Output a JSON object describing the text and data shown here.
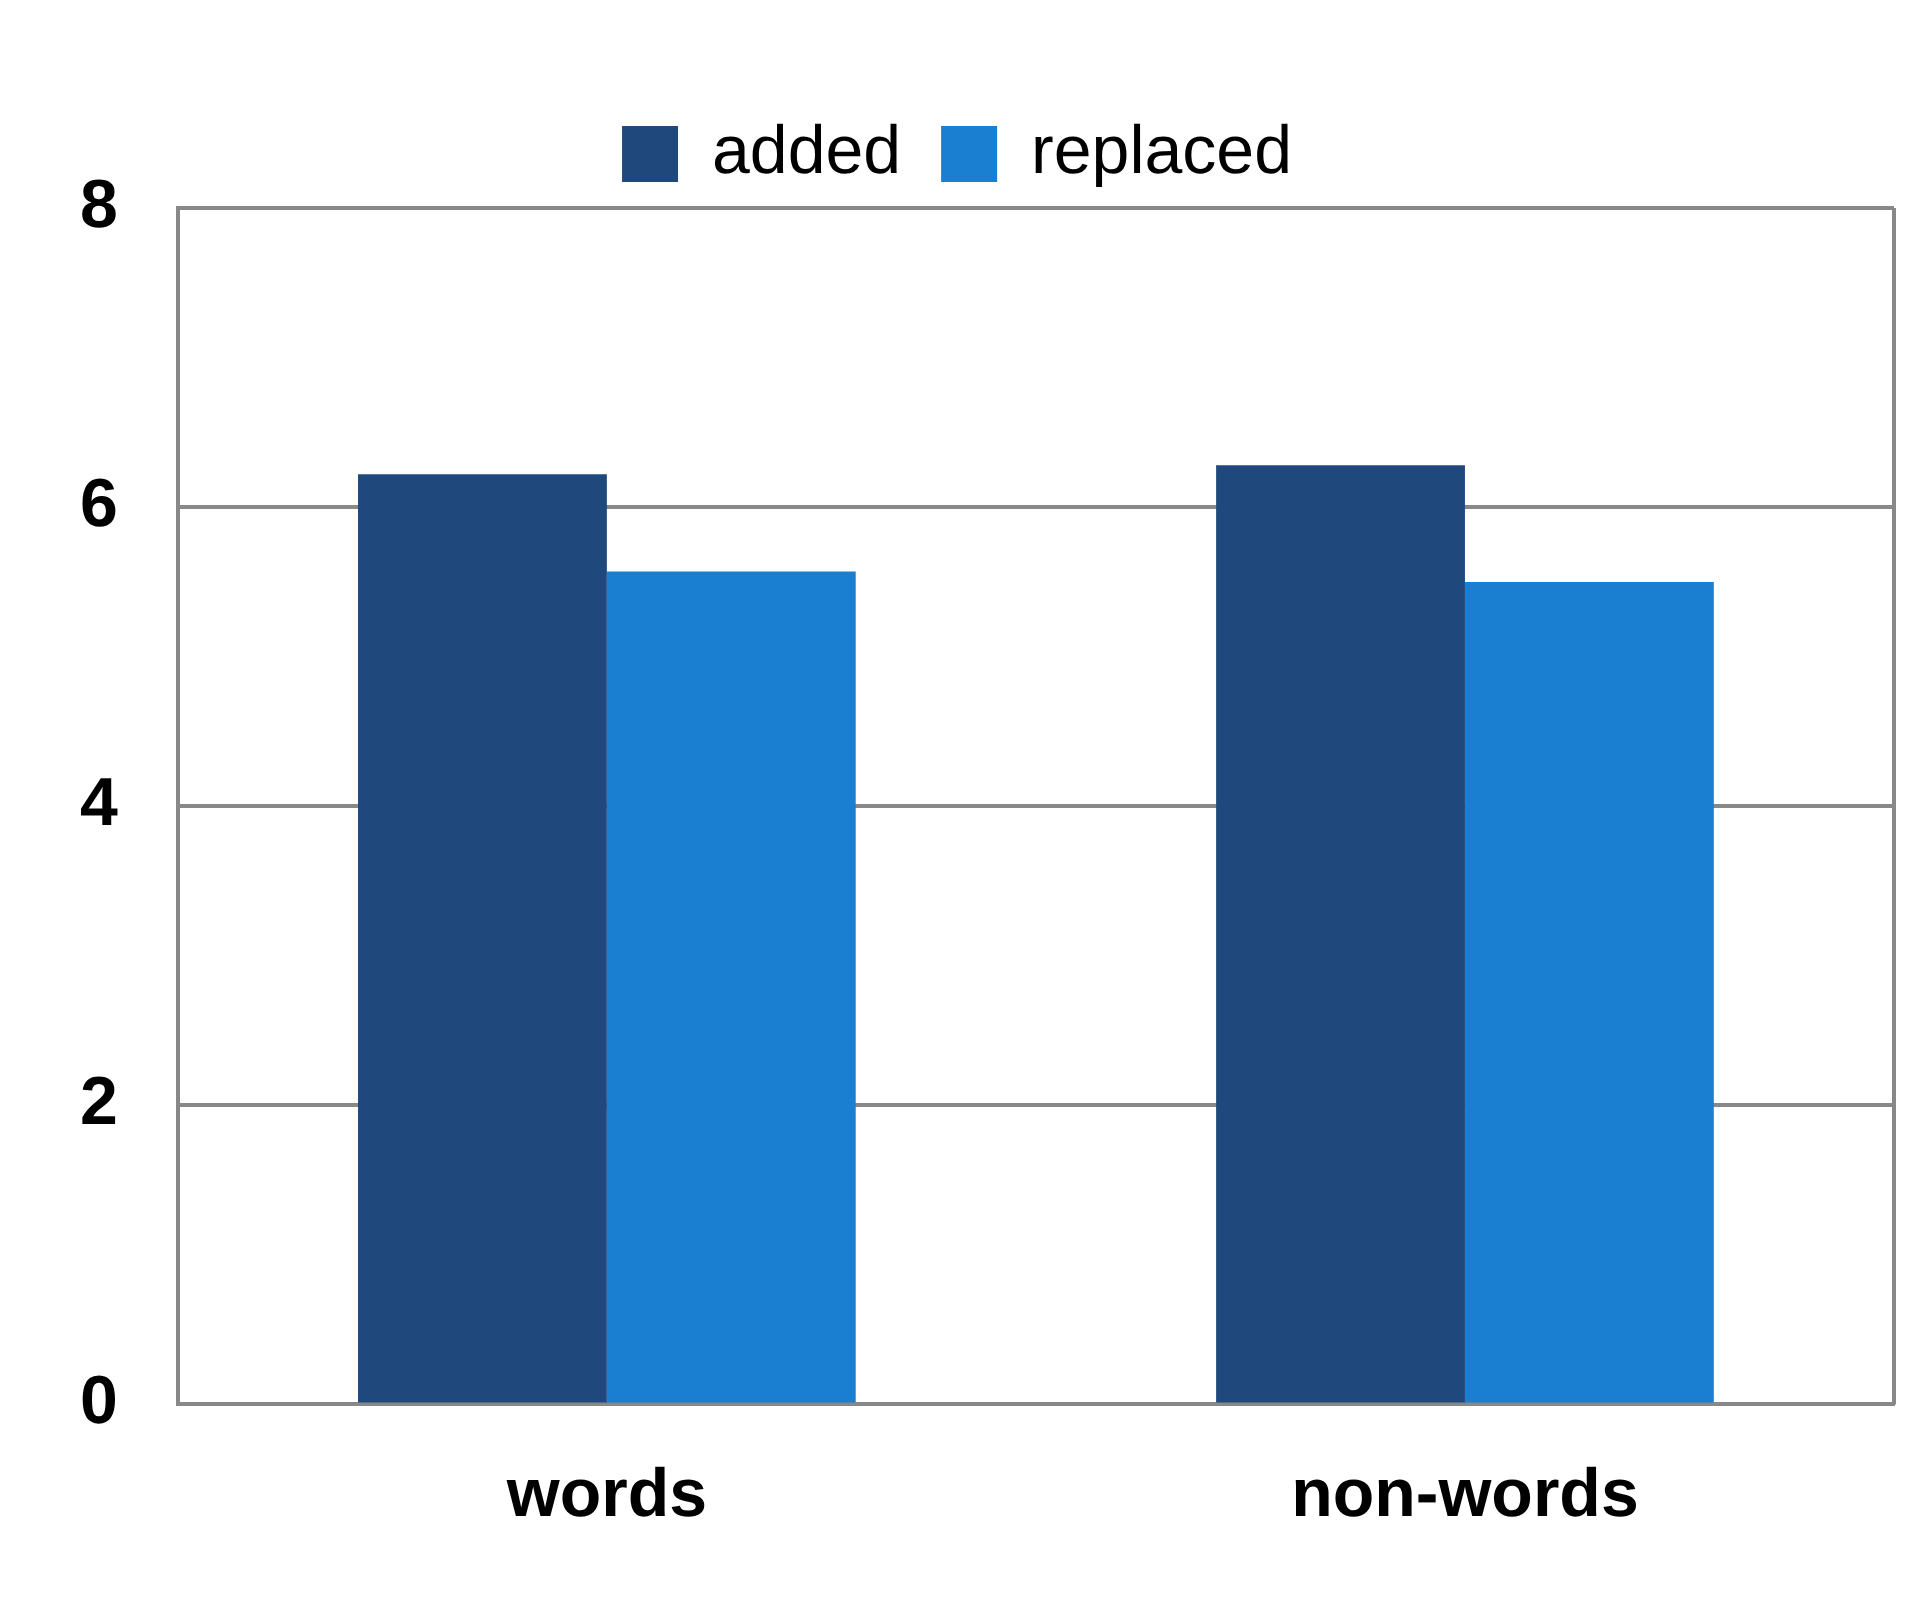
{
  "chart_data": {
    "type": "bar",
    "categories": [
      "words",
      "non-words"
    ],
    "series": [
      {
        "name": "added",
        "color": "#1f497d",
        "values": [
          6.22,
          6.28
        ]
      },
      {
        "name": "replaced",
        "color": "#1a7fd0",
        "values": [
          5.57,
          5.5
        ]
      }
    ],
    "ylim": [
      0,
      8
    ],
    "yticks": [
      0,
      2,
      4,
      6,
      8
    ],
    "grid": "y",
    "legend": "top"
  }
}
